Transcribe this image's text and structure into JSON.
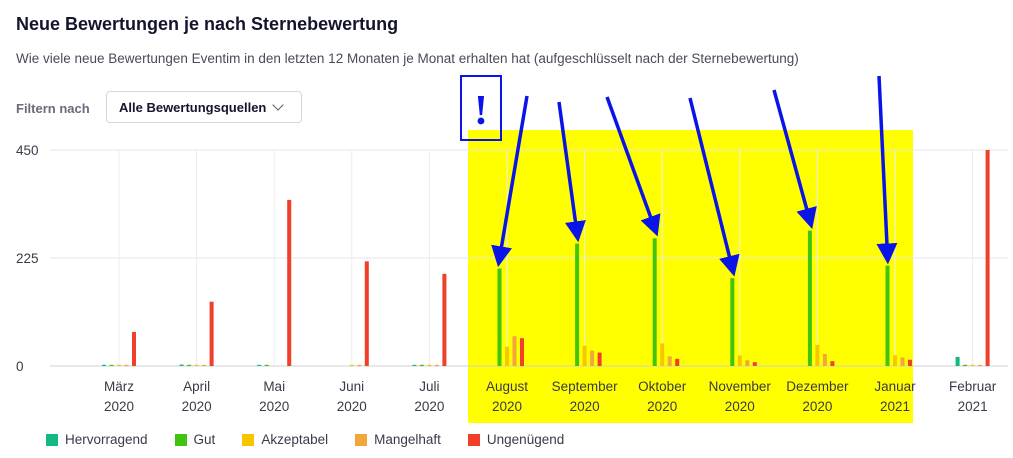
{
  "header": {
    "title": "Neue Bewertungen je nach Sternebewertung",
    "subtitle": "Wie viele neue Bewertungen Eventim in den letzten 12 Monaten je Monat erhalten hat (aufgeschlüsselt nach der Sternebewertung)"
  },
  "filter": {
    "label": "Filtern nach",
    "selected": "Alle Bewertungsquellen"
  },
  "annotation": {
    "exclamation": "!",
    "highlight_color": "#ffff00",
    "arrow_color": "#0a14e6"
  },
  "chart_data": {
    "type": "bar",
    "categories": [
      [
        "März",
        "2020"
      ],
      [
        "April",
        "2020"
      ],
      [
        "Mai",
        "2020"
      ],
      [
        "Juni",
        "2020"
      ],
      [
        "Juli",
        "2020"
      ],
      [
        "August",
        "2020"
      ],
      [
        "September",
        "2020"
      ],
      [
        "Oktober",
        "2020"
      ],
      [
        "November",
        "2020"
      ],
      [
        "Dezember",
        "2020"
      ],
      [
        "Januar",
        "2021"
      ],
      [
        "Februar",
        "2021"
      ]
    ],
    "series": [
      {
        "name": "Hervorragend",
        "color": "#13b884",
        "values": [
          1,
          3,
          1,
          0,
          2,
          0,
          0,
          0,
          0,
          0,
          0,
          19
        ]
      },
      {
        "name": "Gut",
        "color": "#3fc40f",
        "values": [
          1,
          2,
          1,
          0,
          1,
          203,
          255,
          266,
          183,
          282,
          209,
          2
        ]
      },
      {
        "name": "Akzeptabel",
        "color": "#f7c600",
        "values": [
          1,
          1,
          0,
          1,
          1,
          40,
          42,
          47,
          22,
          44,
          22,
          1
        ]
      },
      {
        "name": "Mangelhaft",
        "color": "#f3a63a",
        "values": [
          1,
          1,
          0,
          1,
          1,
          62,
          32,
          20,
          12,
          25,
          18,
          1
        ]
      },
      {
        "name": "Ungenügend",
        "color": "#f0402a",
        "values": [
          71,
          134,
          346,
          218,
          192,
          58,
          28,
          15,
          8,
          10,
          13,
          450
        ]
      }
    ],
    "yticks": [
      0,
      225,
      450
    ],
    "ylim": [
      0,
      450
    ],
    "grid": true,
    "legend_position": "bottom-left"
  }
}
